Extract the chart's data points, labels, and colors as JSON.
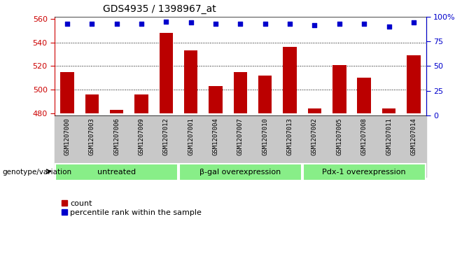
{
  "title": "GDS4935 / 1398967_at",
  "samples": [
    "GSM1207000",
    "GSM1207003",
    "GSM1207006",
    "GSM1207009",
    "GSM1207012",
    "GSM1207001",
    "GSM1207004",
    "GSM1207007",
    "GSM1207010",
    "GSM1207013",
    "GSM1207002",
    "GSM1207005",
    "GSM1207008",
    "GSM1207011",
    "GSM1207014"
  ],
  "counts": [
    515,
    496,
    483,
    496,
    548,
    533,
    503,
    515,
    512,
    536,
    484,
    521,
    510,
    484,
    529
  ],
  "percentiles": [
    93,
    93,
    93,
    93,
    95,
    94,
    93,
    93,
    93,
    93,
    91,
    93,
    93,
    90,
    94
  ],
  "groups": [
    {
      "label": "untreated",
      "start": 0,
      "end": 5
    },
    {
      "label": "β-gal overexpression",
      "start": 5,
      "end": 10
    },
    {
      "label": "Pdx-1 overexpression",
      "start": 10,
      "end": 15
    }
  ],
  "ylim_left": [
    478,
    562
  ],
  "bar_baseline": 480,
  "ylim_right": [
    0,
    100
  ],
  "yticks_left": [
    480,
    500,
    520,
    540,
    560
  ],
  "yticks_right": [
    0,
    25,
    50,
    75,
    100
  ],
  "bar_color": "#bb0000",
  "dot_color": "#0000cc",
  "bg_color": "#c8c8c8",
  "group_bg": "#88ee88",
  "left_axis_color": "#cc0000",
  "right_axis_color": "#0000cc",
  "genotype_label": "genotype/variation",
  "legend_count": "count",
  "legend_pct": "percentile rank within the sample",
  "grid_yticks": [
    500,
    520,
    540
  ]
}
